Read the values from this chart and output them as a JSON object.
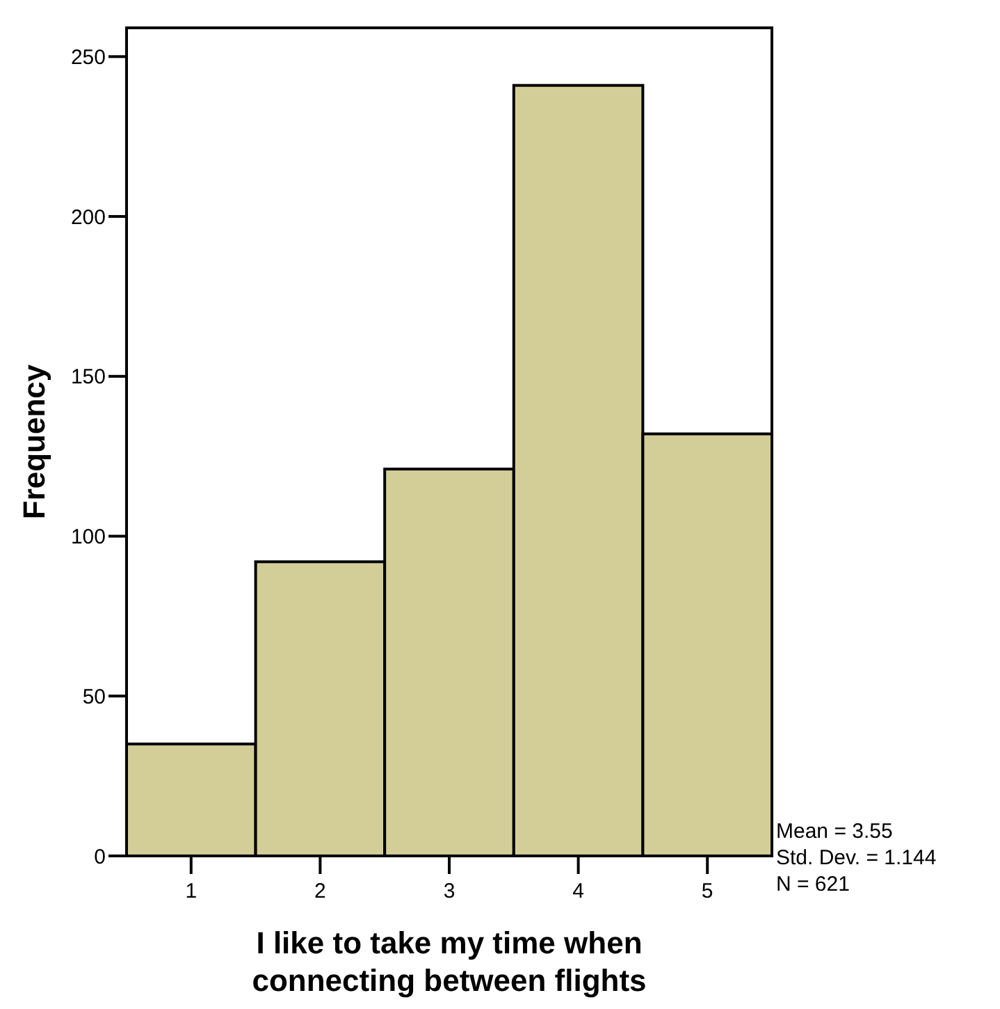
{
  "chart_data": {
    "type": "histogram",
    "xlabel": "I like to take my time when connecting between flights",
    "ylabel": "Frequency",
    "bins": [
      0.5,
      1.5,
      2.5,
      3.5,
      4.5,
      5.5
    ],
    "values": [
      35,
      92,
      121,
      241,
      132
    ],
    "color": "#d3ce98",
    "xlim": [
      0.5,
      5.5
    ],
    "xticks": [
      1,
      2,
      3,
      4,
      5
    ],
    "ylim": [
      0,
      259
    ],
    "yticks": [
      0,
      50,
      100,
      150,
      200,
      250
    ],
    "grid": false,
    "annotations": [
      "Mean = 3.55",
      "Std. Dev. = 1.144",
      "N = 621"
    ]
  }
}
